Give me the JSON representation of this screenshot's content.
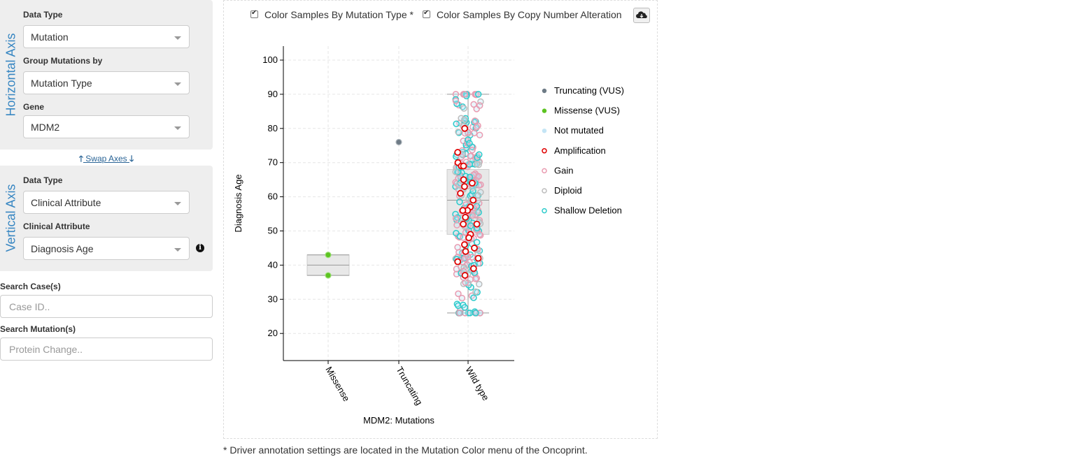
{
  "horizontal_axis": {
    "title": "Horizontal Axis",
    "data_type_label": "Data Type",
    "data_type_value": "Mutation",
    "group_label": "Group Mutations by",
    "group_value": "Mutation Type",
    "gene_label": "Gene",
    "gene_value": "MDM2"
  },
  "swap_axes_label": " Swap Axes ",
  "vertical_axis": {
    "title": "Vertical Axis",
    "data_type_label": "Data Type",
    "data_type_value": "Clinical Attribute",
    "attribute_label": "Clinical Attribute",
    "attribute_value": "Diagnosis Age"
  },
  "search": {
    "cases_label": "Search Case(s)",
    "cases_placeholder": "Case ID..",
    "mutations_label": "Search Mutation(s)",
    "mutations_placeholder": "Protein Change.."
  },
  "options": {
    "color_by_mutation_label": "Color Samples By Mutation Type *",
    "color_by_cna_label": "Color Samples By Copy Number Alteration"
  },
  "footnote": "* Driver annotation settings are located in the Mutation Color menu of the Oncoprint.",
  "chart_data": {
    "type": "scatter",
    "subtype": "box-strip",
    "xlabel": "MDM2: Mutations",
    "ylabel": "Diagnosis Age",
    "categories": [
      "Missense",
      "Truncating",
      "Wild type"
    ],
    "ylim": [
      12,
      104
    ],
    "yticks": [
      20,
      30,
      40,
      50,
      60,
      70,
      80,
      90,
      100
    ],
    "grid": true,
    "legend_position": "right",
    "legend": [
      {
        "label": "Truncating (VUS)",
        "color": "#6e7b86",
        "style": "filled"
      },
      {
        "label": "Missense (VUS)",
        "color": "#5cc321",
        "style": "filled"
      },
      {
        "label": "Not mutated",
        "color": "#c4e5f5",
        "style": "filled"
      },
      {
        "label": "Amplification",
        "color": "#e00000",
        "style": "ring"
      },
      {
        "label": "Gain",
        "color": "#e99bb0",
        "style": "ring"
      },
      {
        "label": "Diploid",
        "color": "#bcbcbc",
        "style": "ring"
      },
      {
        "label": "Shallow Deletion",
        "color": "#2bcbcb",
        "style": "ring"
      }
    ],
    "boxes": [
      {
        "category": "Missense",
        "min": 37,
        "q1": 37,
        "median": 40,
        "q3": 43,
        "max": 43
      },
      {
        "category": "Wild type",
        "min": 26,
        "q1": 49,
        "median": 59,
        "q3": 68,
        "max": 90
      }
    ],
    "points": [
      {
        "category": "Missense",
        "values": [
          43,
          37
        ],
        "mutation": "Missense (VUS)"
      },
      {
        "category": "Truncating",
        "values": [
          76
        ],
        "mutation": "Truncating (VUS)"
      }
    ],
    "wild_type": {
      "total_points": 320,
      "cna_share": {
        "Gain": 0.42,
        "Shallow Deletion": 0.33,
        "Diploid": 0.17,
        "Amplification": 0.08
      },
      "amplification_values": [
        80,
        73,
        70,
        69,
        69,
        65,
        64,
        63,
        61,
        59,
        57,
        56,
        56,
        54,
        52,
        52,
        49,
        48,
        46,
        45,
        44,
        42,
        41,
        39,
        37
      ]
    }
  }
}
